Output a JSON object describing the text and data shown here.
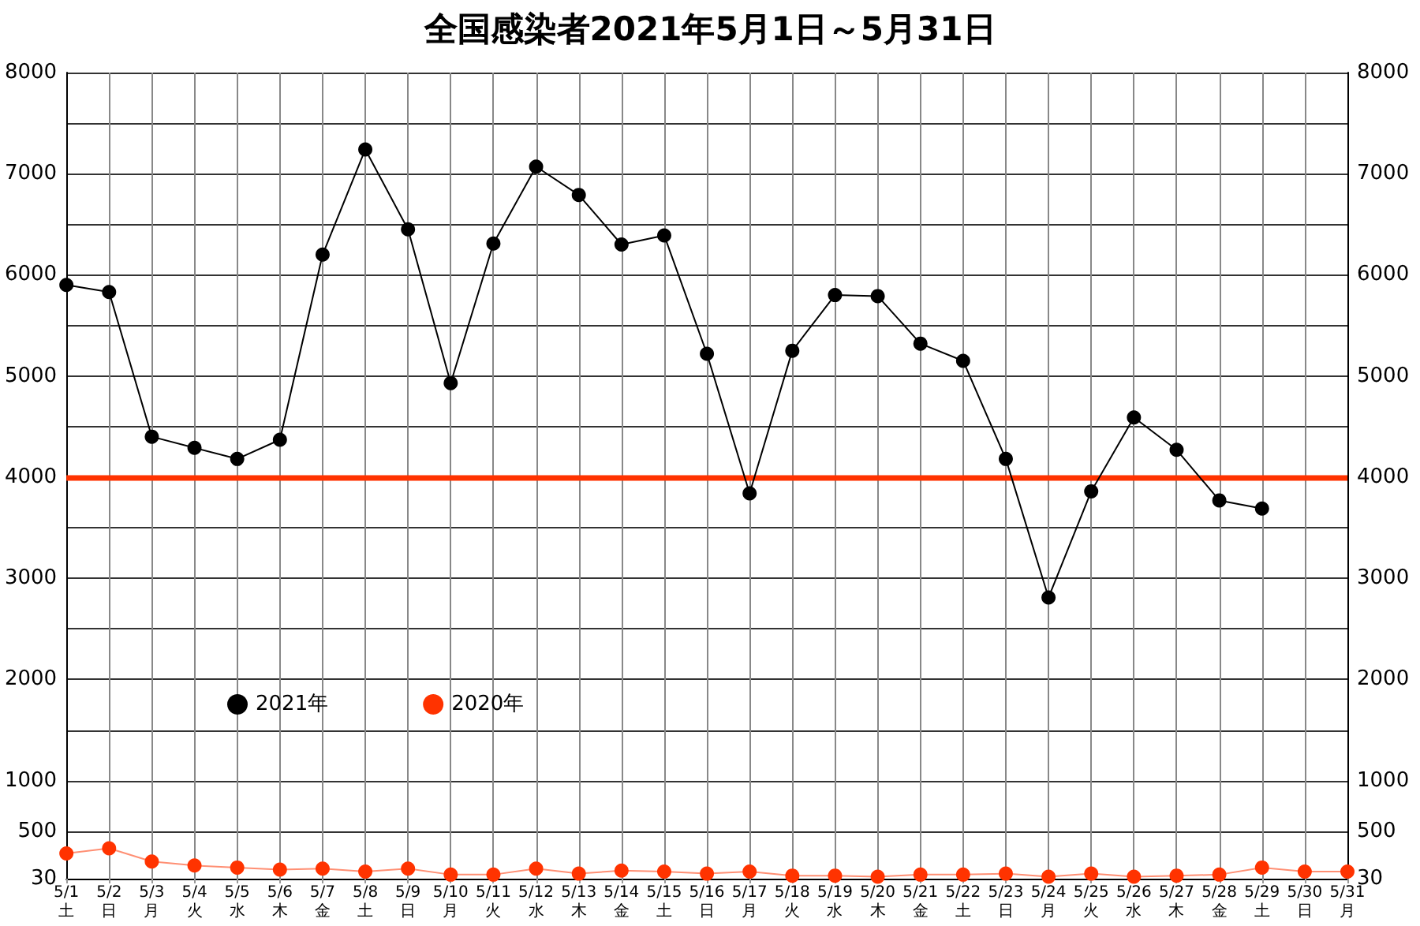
{
  "chart_data": {
    "type": "line",
    "title": "全国感染者2021年5月1日～5月31日",
    "categories": [
      "5/1\n土",
      "5/2\n日",
      "5/3\n月",
      "5/4\n火",
      "5/5\n水",
      "5/6\n木",
      "5/7\n金",
      "5/8\n土",
      "5/9\n日",
      "5/10\n月",
      "5/11\n火",
      "5/12\n水",
      "5/13\n木",
      "5/14\n金",
      "5/15\n土",
      "5/16\n日",
      "5/17\n月",
      "5/18\n火",
      "5/19\n水",
      "5/20\n木",
      "5/21\n金",
      "5/22\n土",
      "5/23\n日",
      "5/24\n月",
      "5/25\n火",
      "5/26\n水",
      "5/27\n木",
      "5/28\n金",
      "5/29\n土",
      "5/30\n日",
      "5/31\n月"
    ],
    "series": [
      {
        "name": "2021年",
        "color": "#000000",
        "values": [
          5900,
          5830,
          4400,
          4290,
          4180,
          4370,
          6200,
          7240,
          6450,
          4930,
          6310,
          7070,
          6790,
          6300,
          6390,
          5220,
          3840,
          5250,
          5800,
          5790,
          5320,
          5150,
          4180,
          2810,
          3860,
          4590,
          4270,
          3770,
          3690,
          null,
          null
        ]
      },
      {
        "name": "2020年",
        "color": "#ff3300",
        "values": [
          280,
          330,
          200,
          160,
          140,
          120,
          130,
          100,
          130,
          70,
          70,
          130,
          80,
          110,
          100,
          80,
          100,
          60,
          60,
          50,
          70,
          70,
          80,
          50,
          80,
          50,
          60,
          70,
          140,
          100,
          100
        ]
      }
    ],
    "ylim": [
      30,
      8000
    ],
    "yticks": [
      30,
      500,
      1000,
      {
        "value": 1500,
        "label": null
      },
      2000,
      {
        "value": 2500,
        "label": null
      },
      3000,
      {
        "value": 3500,
        "label": null
      },
      4000,
      {
        "value": 4500,
        "label": null
      },
      5000,
      {
        "value": 5500,
        "label": null
      },
      6000,
      {
        "value": 6500,
        "label": null
      },
      7000,
      {
        "value": 7500,
        "label": null
      },
      8000
    ],
    "y2lim": [
      30,
      8000
    ],
    "y2ticks": [
      30,
      500,
      1000,
      {
        "value": 1500,
        "label": null
      },
      2000,
      {
        "value": 2500,
        "label": null
      },
      3000,
      {
        "value": 3500,
        "label": null
      },
      4000,
      {
        "value": 4500,
        "label": null
      },
      5000,
      {
        "value": 5500,
        "label": null
      },
      6000,
      {
        "value": 6500,
        "label": null
      },
      7000,
      {
        "value": 7500,
        "label": null
      },
      8000
    ],
    "ref_lines": [
      {
        "axis": "y",
        "value": 4000,
        "color": "#ff3300"
      }
    ],
    "grid": true,
    "legend": "bottom left",
    "marker": "circle",
    "line_style": "solid"
  }
}
